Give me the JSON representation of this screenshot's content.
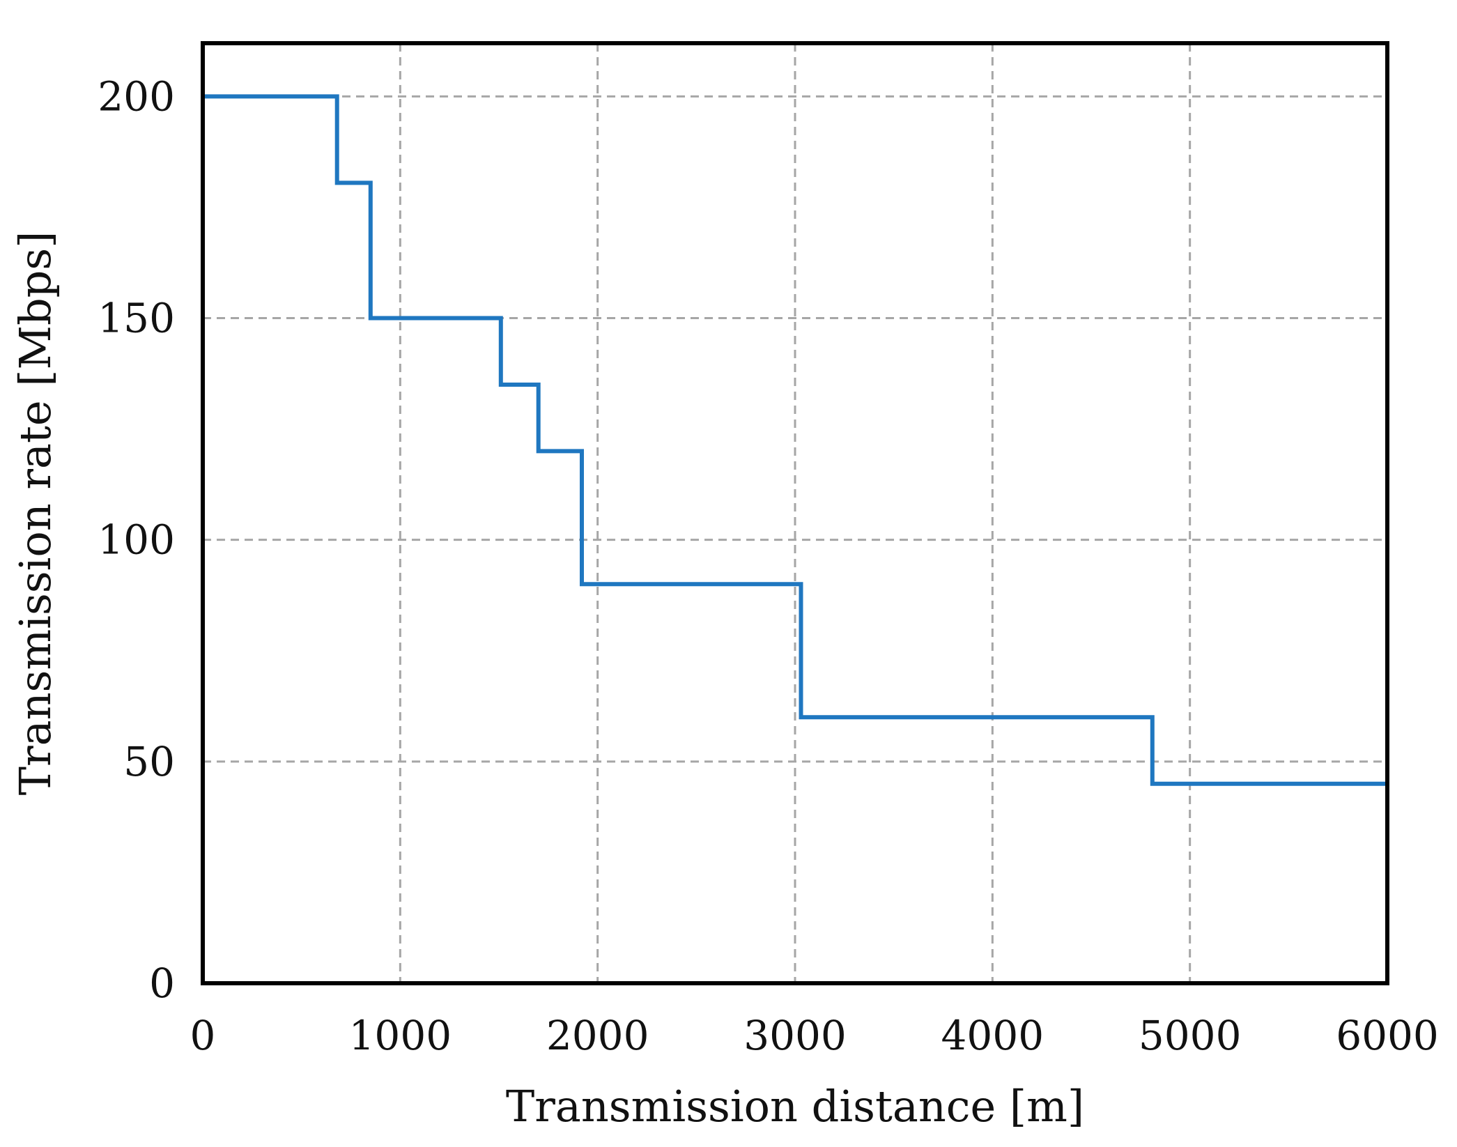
{
  "chart_data": {
    "type": "line",
    "step": true,
    "title": "",
    "xlabel": "Transmission distance [m]",
    "ylabel": "Transmission rate [Mbps]",
    "xlim": [
      0,
      6000
    ],
    "ylim": [
      0,
      212
    ],
    "xticks": [
      0,
      1000,
      2000,
      3000,
      4000,
      5000,
      6000
    ],
    "yticks": [
      0,
      50,
      100,
      150,
      200
    ],
    "grid": true,
    "legend": "none",
    "series": [
      {
        "color": "#1f77c0",
        "points": [
          [
            0,
            200
          ],
          [
            680,
            200
          ],
          [
            680,
            180.5
          ],
          [
            850,
            180.5
          ],
          [
            850,
            150
          ],
          [
            1510,
            150
          ],
          [
            1510,
            135
          ],
          [
            1700,
            135
          ],
          [
            1700,
            120
          ],
          [
            1920,
            120
          ],
          [
            1920,
            90
          ],
          [
            3030,
            90
          ],
          [
            3030,
            60
          ],
          [
            4810,
            60
          ],
          [
            4810,
            45
          ],
          [
            6000,
            45
          ]
        ]
      }
    ]
  }
}
